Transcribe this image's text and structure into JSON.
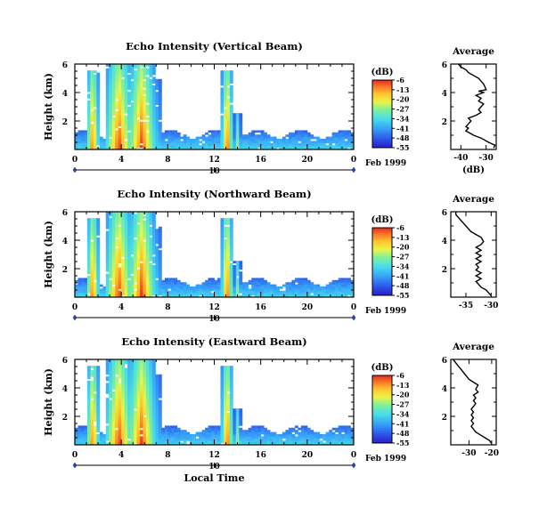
{
  "chart_data": [
    {
      "type": "heatmap",
      "title": "Echo Intensity (Vertical Beam)",
      "ylabel": "Height (km)",
      "x_ticks": [
        "0",
        "4",
        "8",
        "12",
        "16",
        "20",
        "0"
      ],
      "xlim": [
        0,
        24
      ],
      "ylim": [
        0,
        6
      ],
      "y_ticks": [
        "2",
        "4",
        "6"
      ],
      "date_ticks": [
        "10"
      ],
      "date_label": "Feb 1999",
      "colorbar": {
        "unit": "(dB)",
        "ticks": [
          "-6",
          "-13",
          "-20",
          "-27",
          "-34",
          "-41",
          "-48",
          "-55"
        ],
        "range": [
          -55,
          -6
        ]
      },
      "profile": {
        "title": "Average",
        "xlabel": "(dB)",
        "x_ticks": [
          "-40",
          "-30"
        ],
        "xlim": [
          -44,
          -26
        ],
        "ylim": [
          0,
          6
        ],
        "y_ticks": [
          "2",
          "4",
          "6"
        ],
        "x": [
          -27,
          -26.5,
          -29,
          -32,
          -35,
          -36,
          -38,
          -37,
          -38,
          -37,
          -36,
          -37,
          -34,
          -32,
          -33,
          -32,
          -31,
          -33,
          -32,
          -34,
          -31,
          -33,
          -30,
          -30.5,
          -31,
          -32,
          -33,
          -35,
          -37,
          -38,
          -40,
          -41
        ],
        "y": [
          0.1,
          0.3,
          0.5,
          0.8,
          1.0,
          1.1,
          1.3,
          1.5,
          1.6,
          1.8,
          2.0,
          2.2,
          2.4,
          2.6,
          2.8,
          3.0,
          3.2,
          3.4,
          3.6,
          3.8,
          4.0,
          4.1,
          4.2,
          4.4,
          4.6,
          4.8,
          5.0,
          5.2,
          5.4,
          5.6,
          5.8,
          6.0
        ]
      }
    },
    {
      "type": "heatmap",
      "title": "Echo Intensity (Northward Beam)",
      "ylabel": "Height (km)",
      "x_ticks": [
        "0",
        "4",
        "8",
        "12",
        "16",
        "20",
        "0"
      ],
      "xlim": [
        0,
        24
      ],
      "ylim": [
        0,
        6
      ],
      "y_ticks": [
        "2",
        "4",
        "6"
      ],
      "date_ticks": [
        "10"
      ],
      "date_label": "Feb 1999",
      "colorbar": {
        "unit": "(dB)",
        "ticks": [
          "-6",
          "-13",
          "-20",
          "-27",
          "-34",
          "-41",
          "-48",
          "-55"
        ],
        "range": [
          -55,
          -6
        ]
      },
      "profile": {
        "title": "Average",
        "xlabel": "",
        "x_ticks": [
          "-35",
          "-30"
        ],
        "xlim": [
          -38,
          -29
        ],
        "ylim": [
          0,
          6
        ],
        "y_ticks": [
          "2",
          "4",
          "6"
        ],
        "x": [
          -30,
          -30.5,
          -31,
          -32,
          -32.5,
          -33,
          -32,
          -33,
          -32,
          -33,
          -32.5,
          -33,
          -32,
          -33,
          -32,
          -33,
          -32,
          -33,
          -32,
          -31.5,
          -32,
          -33,
          -34,
          -34.5,
          -35,
          -35.5,
          -36,
          -36.5,
          -37,
          -37
        ],
        "y": [
          0.1,
          0.3,
          0.5,
          0.7,
          0.9,
          1.1,
          1.3,
          1.5,
          1.7,
          1.9,
          2.1,
          2.3,
          2.5,
          2.7,
          2.9,
          3.1,
          3.3,
          3.5,
          3.7,
          3.9,
          4.2,
          4.4,
          4.6,
          4.8,
          5.0,
          5.2,
          5.4,
          5.6,
          5.8,
          6.0
        ]
      }
    },
    {
      "type": "heatmap",
      "title": "Echo Intensity (Eastward Beam)",
      "ylabel": "Height (km)",
      "x_ticks": [
        "0",
        "4",
        "8",
        "12",
        "16",
        "20",
        "0"
      ],
      "xlim": [
        0,
        24
      ],
      "ylim": [
        0,
        6
      ],
      "y_ticks": [
        "2",
        "4",
        "6"
      ],
      "date_ticks": [
        "10"
      ],
      "date_label": "Feb 1999",
      "xlabel": "Local Time",
      "colorbar": {
        "unit": "(dB)",
        "ticks": [
          "-6",
          "-13",
          "-20",
          "-27",
          "-34",
          "-41",
          "-48",
          "-55"
        ],
        "range": [
          -55,
          -6
        ]
      },
      "profile": {
        "title": "Average",
        "xlabel": "",
        "x_ticks": [
          "-30",
          "-20"
        ],
        "xlim": [
          -38,
          -18
        ],
        "ylim": [
          0,
          6
        ],
        "y_ticks": [
          "2",
          "4",
          "6"
        ],
        "x": [
          -20,
          -21,
          -23,
          -25,
          -27,
          -28,
          -29,
          -28,
          -29,
          -28,
          -29,
          -28,
          -29,
          -28,
          -27,
          -28,
          -27,
          -28,
          -26,
          -27,
          -26,
          -28,
          -30,
          -31,
          -32,
          -33,
          -34,
          -35,
          -36,
          -37
        ],
        "y": [
          0.1,
          0.3,
          0.5,
          0.7,
          0.9,
          1.1,
          1.3,
          1.5,
          1.7,
          1.9,
          2.1,
          2.3,
          2.5,
          2.7,
          2.9,
          3.1,
          3.3,
          3.5,
          3.7,
          3.9,
          4.2,
          4.4,
          4.6,
          4.8,
          5.0,
          5.2,
          5.4,
          5.6,
          5.8,
          6.0
        ]
      }
    }
  ]
}
